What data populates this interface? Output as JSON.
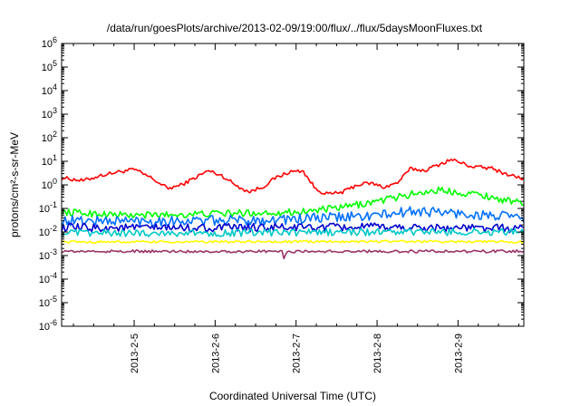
{
  "chart_data": {
    "type": "line",
    "title": "/data/run/goesPlots/archive/2013-02-09/19:00/flux/../flux/5daysMoonFluxes.txt",
    "xlabel": "Coordinated Universal Time (UTC)",
    "ylabel": "protons/cm²-s-sr-MeV",
    "yscale": "log",
    "ylim": [
      1e-06,
      1000000.0
    ],
    "xlim": [
      "2013-02-04 02:30",
      "2013-02-09 19:30"
    ],
    "x_ticks": [
      "2013-2-5",
      "2013-2-6",
      "2013-2-7",
      "2013-2-8",
      "2013-2-9"
    ],
    "y_ticks": [
      {
        "base": "10",
        "exp": "-6"
      },
      {
        "base": "10",
        "exp": "-5"
      },
      {
        "base": "10",
        "exp": "-4"
      },
      {
        "base": "10",
        "exp": "-3"
      },
      {
        "base": "10",
        "exp": "-2"
      },
      {
        "base": "10",
        "exp": "-1"
      },
      {
        "base": "10",
        "exp": "0"
      },
      {
        "base": "10",
        "exp": "1"
      },
      {
        "base": "10",
        "exp": "2"
      },
      {
        "base": "10",
        "exp": "3"
      },
      {
        "base": "10",
        "exp": "4"
      },
      {
        "base": "10",
        "exp": "5"
      },
      {
        "base": "10",
        "exp": "6"
      }
    ],
    "grid": false,
    "legend": "none",
    "series": [
      {
        "color": "#ff0000",
        "noise": 0.08,
        "x": [
          "2013-02-04 02:30",
          "2013-02-04 09:00",
          "2013-02-04 14:00",
          "2013-02-04 19:00",
          "2013-02-05 00:00",
          "2013-02-05 05:00",
          "2013-02-05 10:00",
          "2013-02-05 14:00",
          "2013-02-05 18:00",
          "2013-02-05 22:00",
          "2013-02-06 02:00",
          "2013-02-06 06:00",
          "2013-02-06 10:00",
          "2013-02-06 14:00",
          "2013-02-06 18:00",
          "2013-02-06 22:00",
          "2013-02-07 02:00",
          "2013-02-07 06:00",
          "2013-02-07 10:00",
          "2013-02-07 14:00",
          "2013-02-07 18:00",
          "2013-02-07 22:00",
          "2013-02-08 02:00",
          "2013-02-08 06:00",
          "2013-02-08 10:00",
          "2013-02-08 14:00",
          "2013-02-08 18:00",
          "2013-02-08 22:00",
          "2013-02-09 04:00",
          "2013-02-09 10:00",
          "2013-02-09 14:00",
          "2013-02-09 19:30"
        ],
        "values": [
          2.0,
          1.5,
          2.5,
          3.5,
          4.5,
          2.0,
          0.7,
          1.0,
          2.0,
          4.0,
          2.5,
          1.0,
          0.5,
          0.8,
          2.0,
          3.5,
          4.0,
          0.6,
          0.4,
          0.5,
          1.0,
          1.2,
          0.8,
          1.2,
          5.0,
          4.0,
          7.0,
          12.0,
          6.0,
          5.0,
          3.0,
          1.8
        ]
      },
      {
        "color": "#00ff00",
        "noise": 0.15,
        "x": [
          "2013-02-04 02:30",
          "2013-02-05 00:00",
          "2013-02-06 00:00",
          "2013-02-07 00:00",
          "2013-02-07 12:00",
          "2013-02-08 00:00",
          "2013-02-08 12:00",
          "2013-02-08 18:00",
          "2013-02-09 06:00",
          "2013-02-09 19:30"
        ],
        "values": [
          0.07,
          0.05,
          0.06,
          0.07,
          0.1,
          0.2,
          0.45,
          0.6,
          0.4,
          0.15
        ]
      },
      {
        "color": "#0070ff",
        "noise": 0.22,
        "x": [
          "2013-02-04 02:30",
          "2013-02-05 00:00",
          "2013-02-06 00:00",
          "2013-02-07 00:00",
          "2013-02-08 00:00",
          "2013-02-08 12:00",
          "2013-02-09 00:00",
          "2013-02-09 19:30"
        ],
        "values": [
          0.03,
          0.03,
          0.03,
          0.035,
          0.05,
          0.08,
          0.06,
          0.04
        ]
      },
      {
        "color": "#0000cc",
        "noise": 0.18,
        "x": [
          "2013-02-04 02:30",
          "2013-02-06 00:00",
          "2013-02-08 00:00",
          "2013-02-09 19:30"
        ],
        "values": [
          0.015,
          0.015,
          0.016,
          0.014
        ]
      },
      {
        "color": "#00c8c8",
        "noise": 0.15,
        "x": [
          "2013-02-04 02:30",
          "2013-02-06 00:00",
          "2013-02-08 00:00",
          "2013-02-09 19:30"
        ],
        "values": [
          0.009,
          0.009,
          0.01,
          0.01
        ]
      },
      {
        "color": "#ffff00",
        "noise": 0.05,
        "x": [
          "2013-02-04 02:30",
          "2013-02-06 00:00",
          "2013-02-08 00:00",
          "2013-02-09 19:30"
        ],
        "values": [
          0.0038,
          0.0038,
          0.004,
          0.0038
        ]
      },
      {
        "color": "#993366",
        "noise": 0.06,
        "x": [
          "2013-02-04 02:30",
          "2013-02-06 00:00",
          "2013-02-06 20:00",
          "2013-02-06 20:30",
          "2013-02-06 21:00",
          "2013-02-08 00:00",
          "2013-02-09 19:30"
        ],
        "values": [
          0.0015,
          0.0015,
          0.0015,
          0.0005,
          0.0015,
          0.0015,
          0.0015
        ]
      }
    ]
  }
}
